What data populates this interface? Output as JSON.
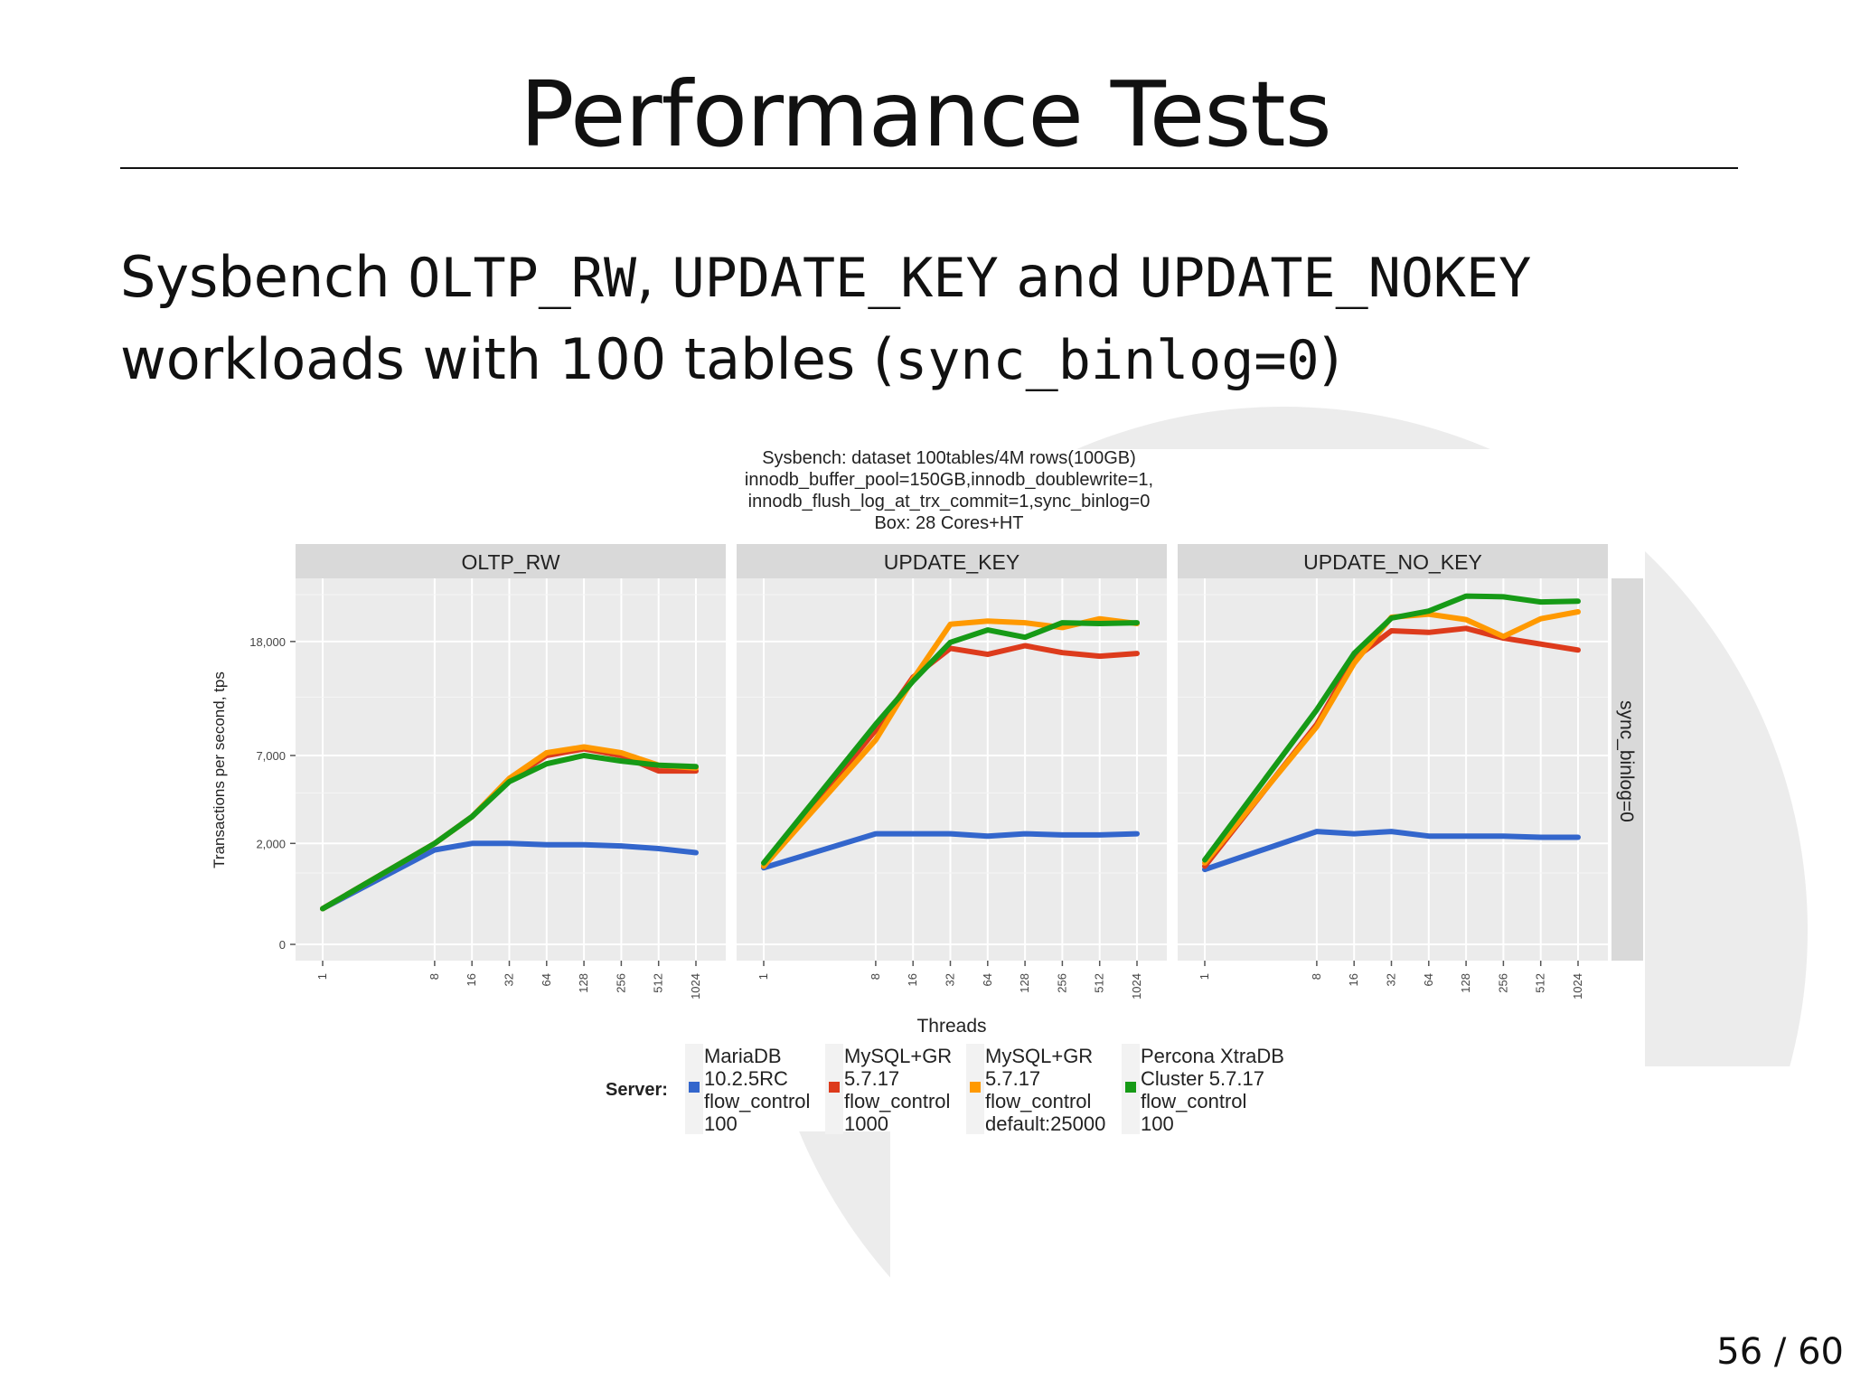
{
  "slide": {
    "title": "Performance Tests",
    "subtitle_parts": [
      {
        "text": "Sysbench ",
        "mono": false
      },
      {
        "text": "OLTP_RW",
        "mono": true
      },
      {
        "text": ", ",
        "mono": false
      },
      {
        "text": "UPDATE_KEY",
        "mono": true
      },
      {
        "text": " and ",
        "mono": false
      },
      {
        "text": "UPDATE_NOKEY",
        "mono": true
      },
      {
        "text": " workloads with 100 tables (",
        "mono": false
      },
      {
        "text": "sync_binlog=0",
        "mono": true
      },
      {
        "text": ")",
        "mono": false
      }
    ],
    "page_number": "56 / 60"
  },
  "chart_data": {
    "type": "line",
    "title_lines": [
      "Sysbench: dataset 100tables/4M rows(100GB)",
      "innodb_buffer_pool=150GB,innodb_doublewrite=1,",
      "innodb_flush_log_at_trx_commit=1,sync_binlog=0",
      "Box: 28 Cores+HT"
    ],
    "xlabel": "Threads",
    "ylabel": "Transactions per second, tps",
    "x_scale": "log2",
    "x": [
      1,
      8,
      16,
      32,
      64,
      128,
      256,
      512,
      1024
    ],
    "x_tick_labels": [
      "1",
      "8",
      "16",
      "32",
      "64",
      "128",
      "256",
      "512",
      "1024"
    ],
    "y_scale": "sqrt",
    "y_ticks": [
      0,
      2000,
      7000,
      18000
    ],
    "y_tick_labels": [
      "0",
      "2,000",
      "7,000",
      "18,000"
    ],
    "ylim": [
      0,
      24000
    ],
    "grid": true,
    "facet_row_label": "sync_binlog=0",
    "legend": {
      "position": "bottom",
      "title": "Server:",
      "entries": [
        {
          "lines": [
            "MariaDB",
            "10.2.5RC",
            "flow_control",
            "100"
          ],
          "color": "#3366cc"
        },
        {
          "lines": [
            "MySQL+GR",
            "5.7.17",
            "flow_control",
            "1000"
          ],
          "color": "#dd3b1c"
        },
        {
          "lines": [
            "MySQL+GR",
            "5.7.17",
            "flow_control",
            "default:25000"
          ],
          "color": "#ff9900"
        },
        {
          "lines": [
            "Percona XtraDB",
            "Cluster 5.7.17",
            "flow_control",
            "100"
          ],
          "color": "#169a16"
        }
      ]
    },
    "panels": [
      {
        "name": "OLTP_RW",
        "series": [
          {
            "name": "MariaDB 10.2.5RC flow_control 100",
            "color": "#3366cc",
            "values": [
              250,
              1750,
              2000,
              2000,
              1950,
              1950,
              1900,
              1800,
              1650
            ]
          },
          {
            "name": "MySQL+GR 5.7.17 flow_control 1000",
            "color": "#dd3b1c",
            "values": [
              250,
              2000,
              3200,
              5300,
              7000,
              7500,
              7000,
              5900,
              5900
            ]
          },
          {
            "name": "MySQL+GR 5.7.17 flow_control default:25000",
            "color": "#ff9900",
            "values": [
              250,
              2000,
              3200,
              5400,
              7200,
              7650,
              7200,
              6300,
              6100
            ]
          },
          {
            "name": "Percona XtraDB Cluster 5.7.17 flow_control 100",
            "color": "#169a16",
            "values": [
              250,
              2000,
              3200,
              5200,
              6400,
              7000,
              6600,
              6300,
              6200
            ]
          }
        ]
      },
      {
        "name": "UPDATE_KEY",
        "series": [
          {
            "name": "MariaDB 10.2.5RC flow_control 100",
            "color": "#3366cc",
            "values": [
              1150,
              2400,
              2400,
              2400,
              2300,
              2400,
              2350,
              2350,
              2400
            ]
          },
          {
            "name": "MySQL+GR 5.7.17 flow_control 1000",
            "color": "#dd3b1c",
            "values": [
              1200,
              9000,
              14000,
              17200,
              16500,
              17500,
              16700,
              16300,
              16600
            ]
          },
          {
            "name": "MySQL+GR 5.7.17 flow_control default:25000",
            "color": "#ff9900",
            "values": [
              1200,
              8200,
              13800,
              20100,
              20500,
              20300,
              19700,
              20800,
              20200
            ]
          },
          {
            "name": "Percona XtraDB Cluster 5.7.17 flow_control 100",
            "color": "#169a16",
            "values": [
              1300,
              9500,
              13600,
              17900,
              19400,
              18500,
              20300,
              20200,
              20300
            ]
          }
        ]
      },
      {
        "name": "UPDATE_NO_KEY",
        "series": [
          {
            "name": "MariaDB 10.2.5RC flow_control 100",
            "color": "#3366cc",
            "values": [
              1100,
              2500,
              2400,
              2500,
              2300,
              2300,
              2300,
              2250,
              2250
            ]
          },
          {
            "name": "MySQL+GR 5.7.17 flow_control 1000",
            "color": "#dd3b1c",
            "values": [
              1200,
              9500,
              16000,
              19300,
              19100,
              19600,
              18400,
              17700,
              17000
            ]
          },
          {
            "name": "MySQL+GR 5.7.17 flow_control default:25000",
            "color": "#ff9900",
            "values": [
              1300,
              9300,
              15500,
              21000,
              21400,
              20700,
              18600,
              20800,
              21700
            ]
          },
          {
            "name": "Percona XtraDB Cluster 5.7.17 flow_control 100",
            "color": "#169a16",
            "values": [
              1400,
              10800,
              16600,
              20900,
              21800,
              23800,
              23700,
              23000,
              23100
            ]
          }
        ]
      }
    ]
  }
}
